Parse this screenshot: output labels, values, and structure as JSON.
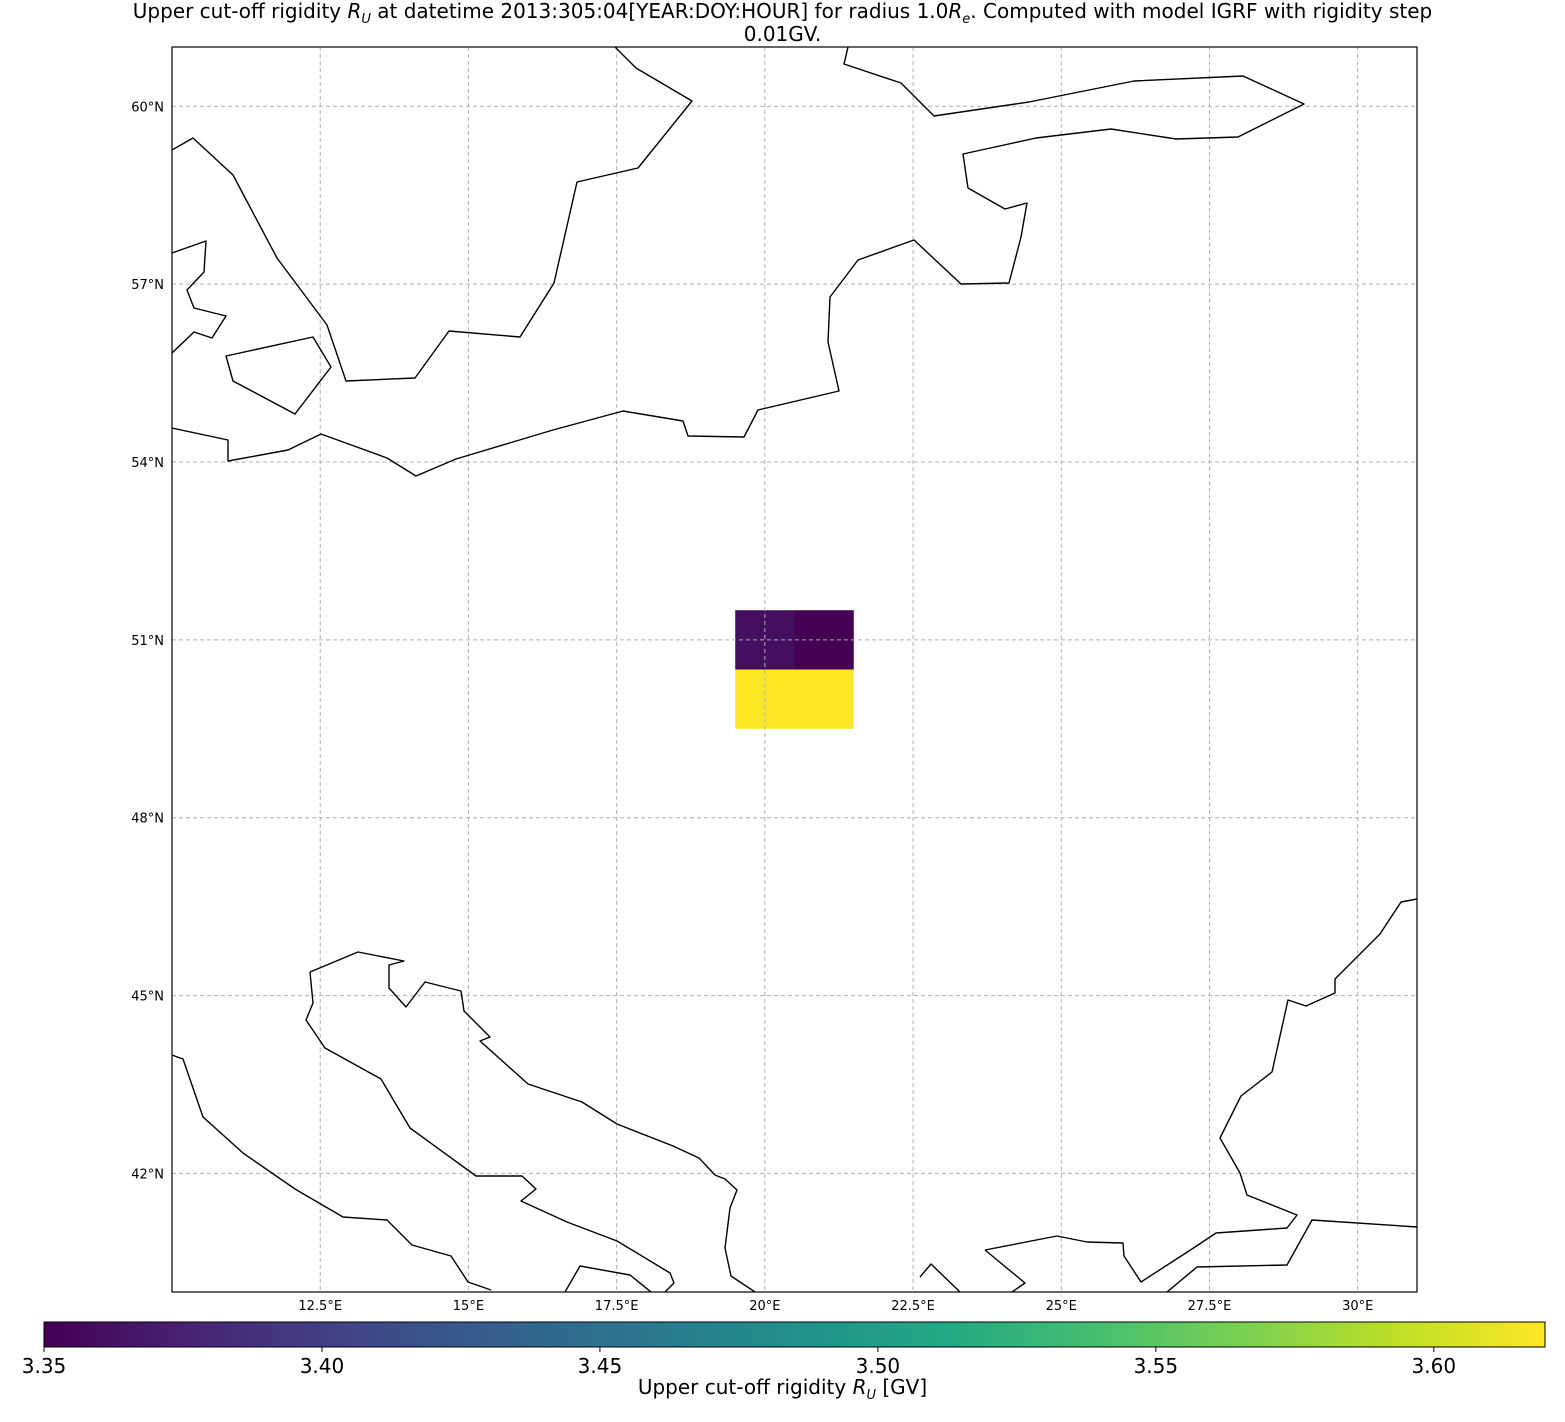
{
  "chart_data": {
    "type": "heatmap",
    "title": {
      "prefix": "Upper cut-off rigidity ",
      "symbol": "R",
      "symbol_sub": "U",
      "middle": " at datetime 2013:305:04[YEAR:DOY:HOUR] for radius 1.0",
      "radius_symbol": "R",
      "radius_sub": "e",
      "suffix": ". Computed with model IGRF with rigidity step",
      "line2": "0.01GV."
    },
    "map": {
      "projection": "PlateCarree",
      "lon_range": [
        10.0,
        31.0
      ],
      "lat_range": [
        40.0,
        61.0
      ],
      "grid": true,
      "lon_ticks": [
        "12.5°E",
        "15°E",
        "17.5°E",
        "20°E",
        "22.5°E",
        "25°E",
        "27.5°E",
        "30°E"
      ],
      "lon_tick_values": [
        12.5,
        15,
        17.5,
        20,
        22.5,
        25,
        27.5,
        30
      ],
      "lat_ticks": [
        "60°N",
        "57°N",
        "54°N",
        "51°N",
        "48°N",
        "45°N",
        "42°N"
      ],
      "lat_tick_values": [
        60,
        57,
        54,
        51,
        48,
        45,
        42
      ],
      "coastlines": true
    },
    "cells": [
      {
        "lon": [
          19.5,
          20.5
        ],
        "lat": [
          50.5,
          51.5
        ],
        "value": 3.36
      },
      {
        "lon": [
          20.5,
          21.5
        ],
        "lat": [
          50.5,
          51.5
        ],
        "value": 3.35
      },
      {
        "lon": [
          19.5,
          20.5
        ],
        "lat": [
          49.5,
          50.5
        ],
        "value": 3.62
      },
      {
        "lon": [
          20.5,
          21.5
        ],
        "lat": [
          49.5,
          50.5
        ],
        "value": 3.62
      }
    ],
    "colorbar": {
      "colormap": "viridis",
      "vmin": 3.35,
      "vmax": 3.62,
      "orientation": "horizontal",
      "ticks": [
        "3.35",
        "3.40",
        "3.45",
        "3.50",
        "3.55",
        "3.60"
      ],
      "tick_values": [
        3.35,
        3.4,
        3.45,
        3.5,
        3.55,
        3.6
      ],
      "label_prefix": "Upper cut-off rigidity ",
      "label_symbol": "R",
      "label_sub": "U",
      "label_suffix": " [GV]"
    }
  }
}
